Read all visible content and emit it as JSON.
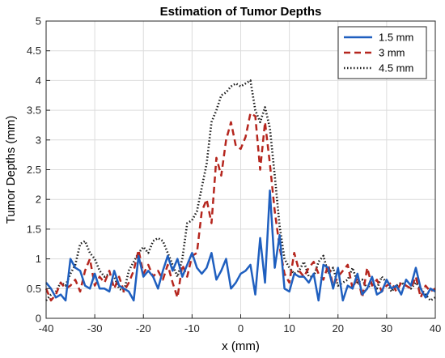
{
  "chart_data": {
    "type": "line",
    "title": "Estimation of Tumor Depths",
    "xlabel": "x (mm)",
    "ylabel": "Tumor Depths (mm)",
    "xlim": [
      -40,
      40
    ],
    "ylim": [
      0,
      5
    ],
    "xticks": [
      -40,
      -30,
      -20,
      -10,
      0,
      10,
      20,
      30,
      40
    ],
    "yticks": [
      0,
      0.5,
      1,
      1.5,
      2,
      2.5,
      3,
      3.5,
      4,
      4.5,
      5
    ],
    "ytick_labels": [
      "0",
      "0.5",
      "1",
      "1.5",
      "2",
      "2.5",
      "3",
      "3.5",
      "4",
      "4.5",
      "5"
    ],
    "grid": true,
    "legend_position": "top-right",
    "series": [
      {
        "name": "1.5 mm",
        "color": "#1f5fbf",
        "style": "solid",
        "x": [
          -40,
          -39,
          -38,
          -37,
          -36,
          -35,
          -34,
          -33,
          -32,
          -31,
          -30,
          -29,
          -28,
          -27,
          -26,
          -25,
          -24,
          -23,
          -22,
          -21,
          -20,
          -19,
          -18,
          -17,
          -16,
          -15,
          -14,
          -13,
          -12,
          -11,
          -10,
          -9,
          -8,
          -7,
          -6,
          -5,
          -4,
          -3,
          -2,
          -1,
          0,
          1,
          2,
          3,
          4,
          5,
          6,
          7,
          8,
          9,
          10,
          11,
          12,
          13,
          14,
          15,
          16,
          17,
          18,
          19,
          20,
          21,
          22,
          23,
          24,
          25,
          26,
          27,
          28,
          29,
          30,
          31,
          32,
          33,
          34,
          35,
          36,
          37,
          38,
          39,
          40
        ],
        "y": [
          0.6,
          0.5,
          0.35,
          0.4,
          0.3,
          1.0,
          0.85,
          0.8,
          0.55,
          0.5,
          0.75,
          0.5,
          0.5,
          0.45,
          0.8,
          0.55,
          0.5,
          0.45,
          0.3,
          1.05,
          0.7,
          0.8,
          0.7,
          0.5,
          0.8,
          1.05,
          0.8,
          1.0,
          0.7,
          0.9,
          1.1,
          0.85,
          0.75,
          0.85,
          1.1,
          0.65,
          0.8,
          1.0,
          0.5,
          0.6,
          0.75,
          0.8,
          0.9,
          0.4,
          1.35,
          0.6,
          2.15,
          0.85,
          1.4,
          0.5,
          0.45,
          0.75,
          0.7,
          0.7,
          0.6,
          0.75,
          0.3,
          0.9,
          0.85,
          0.5,
          0.85,
          0.3,
          0.55,
          0.5,
          0.75,
          0.4,
          0.5,
          0.7,
          0.4,
          0.45,
          0.65,
          0.5,
          0.55,
          0.4,
          0.65,
          0.55,
          0.85,
          0.5,
          0.35,
          0.5,
          0.45
        ]
      },
      {
        "name": "3 mm",
        "color": "#b5261e",
        "style": "dashed",
        "x": [
          -40,
          -39,
          -38,
          -37,
          -36,
          -35,
          -34,
          -33,
          -32,
          -31,
          -30,
          -29,
          -28,
          -27,
          -26,
          -25,
          -24,
          -23,
          -22,
          -21,
          -20,
          -19,
          -18,
          -17,
          -16,
          -15,
          -14,
          -13,
          -12,
          -11,
          -10,
          -9,
          -8,
          -7,
          -6,
          -5,
          -4,
          -3,
          -2,
          -1,
          0,
          1,
          2,
          3,
          4,
          5,
          6,
          7,
          8,
          9,
          10,
          11,
          12,
          13,
          14,
          15,
          16,
          17,
          18,
          19,
          20,
          21,
          22,
          23,
          24,
          25,
          26,
          27,
          28,
          29,
          30,
          31,
          32,
          33,
          34,
          35,
          36,
          37,
          38,
          39,
          40
        ],
        "y": [
          0.5,
          0.3,
          0.4,
          0.6,
          0.5,
          0.55,
          0.65,
          0.45,
          0.8,
          1.0,
          0.55,
          0.7,
          0.6,
          0.8,
          0.5,
          0.7,
          0.45,
          0.6,
          0.8,
          1.15,
          0.75,
          0.9,
          0.7,
          0.8,
          0.65,
          0.9,
          0.6,
          0.35,
          0.9,
          0.7,
          1.05,
          1.1,
          1.8,
          2.0,
          1.6,
          2.7,
          2.4,
          3.0,
          3.3,
          2.9,
          2.85,
          3.05,
          3.45,
          3.4,
          2.5,
          3.3,
          2.6,
          1.8,
          1.2,
          0.75,
          0.6,
          1.1,
          0.8,
          0.7,
          0.85,
          0.95,
          0.75,
          0.65,
          0.9,
          0.55,
          0.7,
          0.8,
          0.9,
          0.5,
          0.7,
          0.35,
          0.85,
          0.55,
          0.65,
          0.45,
          0.55,
          0.6,
          0.45,
          0.6,
          0.55,
          0.5,
          0.7,
          0.35,
          0.55,
          0.45,
          0.5
        ]
      },
      {
        "name": "4.5 mm",
        "color": "#1a1a1a",
        "style": "dotted",
        "x": [
          -40,
          -39,
          -38,
          -37,
          -36,
          -35,
          -34,
          -33,
          -32,
          -31,
          -30,
          -29,
          -28,
          -27,
          -26,
          -25,
          -24,
          -23,
          -22,
          -21,
          -20,
          -19,
          -18,
          -17,
          -16,
          -15,
          -14,
          -13,
          -12,
          -11,
          -10,
          -9,
          -8,
          -7,
          -6,
          -5,
          -4,
          -3,
          -2,
          -1,
          0,
          1,
          2,
          3,
          4,
          5,
          6,
          7,
          8,
          9,
          10,
          11,
          12,
          13,
          14,
          15,
          16,
          17,
          18,
          19,
          20,
          21,
          22,
          23,
          24,
          25,
          26,
          27,
          28,
          29,
          30,
          31,
          32,
          33,
          34,
          35,
          36,
          37,
          38,
          39,
          40
        ],
        "y": [
          0.3,
          0.4,
          0.45,
          0.6,
          0.55,
          0.75,
          0.9,
          1.25,
          1.3,
          1.1,
          1.0,
          0.8,
          0.7,
          0.75,
          0.7,
          0.5,
          0.45,
          0.8,
          0.95,
          1.1,
          1.2,
          1.1,
          1.3,
          1.35,
          1.3,
          1.1,
          0.9,
          0.7,
          1.0,
          1.6,
          1.65,
          1.8,
          2.2,
          2.6,
          3.3,
          3.5,
          3.75,
          3.8,
          3.9,
          3.95,
          3.9,
          3.95,
          4.0,
          3.5,
          3.3,
          3.55,
          3.2,
          2.4,
          1.55,
          1.0,
          0.85,
          0.75,
          0.8,
          0.95,
          0.7,
          0.7,
          0.95,
          1.05,
          0.75,
          0.85,
          0.55,
          0.6,
          0.65,
          0.85,
          0.6,
          0.65,
          0.5,
          0.6,
          0.5,
          0.7,
          0.6,
          0.45,
          0.55,
          0.6,
          0.55,
          0.5,
          0.6,
          0.5,
          0.4,
          0.3,
          0.35
        ]
      }
    ]
  }
}
